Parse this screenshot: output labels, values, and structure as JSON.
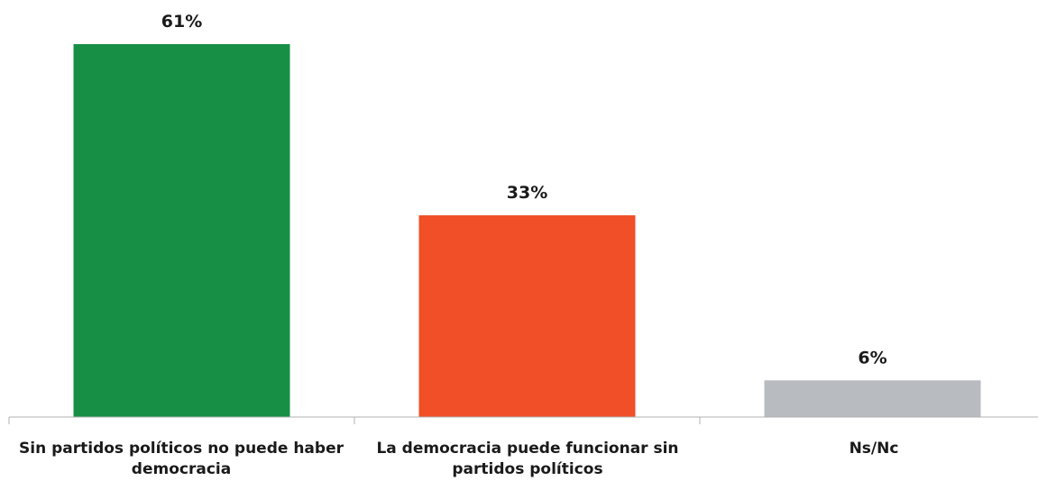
{
  "chart_data": {
    "type": "bar",
    "categories": [
      "Sin partidos políticos no puede haber democracia",
      "La democracia puede funcionar sin partidos políticos",
      "Ns/Nc"
    ],
    "values": [
      61,
      33,
      6
    ],
    "value_labels": [
      "61%",
      "33%",
      "6%"
    ],
    "bar_colors": [
      "#178f45",
      "#f04f28",
      "#b8bcc0"
    ],
    "title": "",
    "xlabel": "",
    "ylabel": "",
    "ylim": [
      0,
      61
    ],
    "grid": false,
    "legend": "none"
  }
}
